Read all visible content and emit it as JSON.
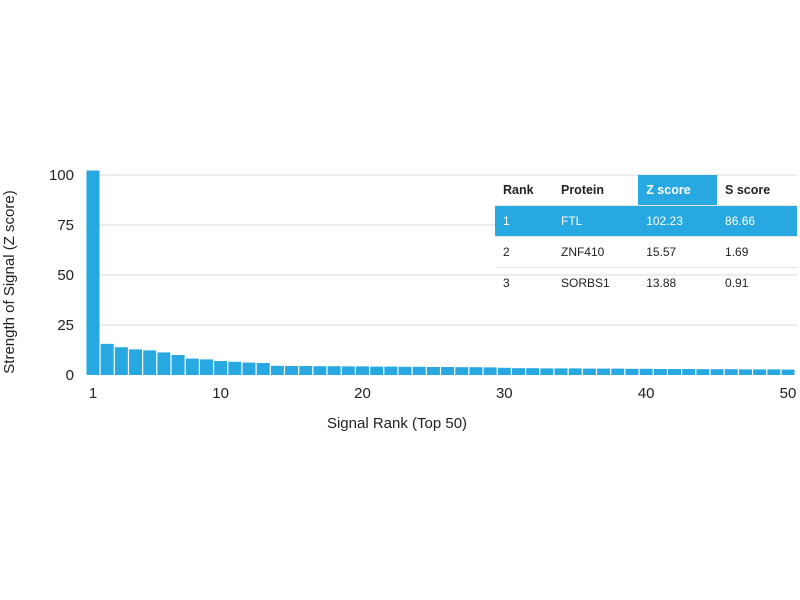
{
  "chart_data": {
    "type": "bar",
    "xlabel": "Signal Rank (Top 50)",
    "ylabel": "Strength of Signal (Z score)",
    "ylim": [
      0,
      100
    ],
    "yticks": [
      0,
      25,
      50,
      75,
      100
    ],
    "xticks": [
      1,
      10,
      20,
      30,
      40,
      50
    ],
    "grid": true,
    "bar_color": "#27a8e0",
    "categories": [
      1,
      2,
      3,
      4,
      5,
      6,
      7,
      8,
      9,
      10,
      11,
      12,
      13,
      14,
      15,
      16,
      17,
      18,
      19,
      20,
      21,
      22,
      23,
      24,
      25,
      26,
      27,
      28,
      29,
      30,
      31,
      32,
      33,
      34,
      35,
      36,
      37,
      38,
      39,
      40,
      41,
      42,
      43,
      44,
      45,
      46,
      47,
      48,
      49,
      50
    ],
    "values": [
      102.23,
      15.57,
      13.88,
      12.8,
      12.3,
      11.3,
      10,
      8.2,
      7.8,
      7,
      6.6,
      6.2,
      6,
      4.6,
      4.5,
      4.5,
      4.4,
      4.4,
      4.3,
      4.3,
      4.2,
      4.2,
      4.1,
      4.1,
      4.0,
      4.0,
      3.9,
      3.9,
      3.8,
      3.6,
      3.4,
      3.4,
      3.3,
      3.3,
      3.3,
      3.2,
      3.2,
      3.2,
      3.1,
      3.1,
      3.0,
      3.0,
      3.0,
      2.9,
      2.9,
      2.9,
      2.8,
      2.8,
      2.8,
      2.7
    ]
  },
  "table": {
    "headers": [
      "Rank",
      "Protein",
      "Z score",
      "S score"
    ],
    "rows": [
      [
        "1",
        "FTL",
        "102.23",
        "86.66"
      ],
      [
        "2",
        "ZNF410",
        "15.57",
        "1.69"
      ],
      [
        "3",
        "SORBS1",
        "13.88",
        "0.91"
      ]
    ]
  }
}
